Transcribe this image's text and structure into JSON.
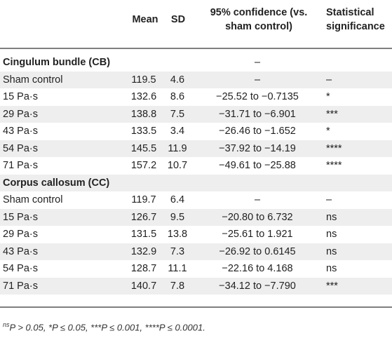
{
  "table": {
    "headers": [
      "",
      "Mean",
      "SD",
      "95% confidence (vs. sham control)",
      "Statistical significance"
    ],
    "header_lines": {
      "mean": "Mean",
      "sd": "SD",
      "ci_line1": "95% confidence (vs.",
      "ci_line2": "sham control)",
      "sig_line1": "Statistical",
      "sig_line2": "significance"
    },
    "rows": [
      {
        "type": "section",
        "label": "Cingulum bundle (CB)",
        "mean": "",
        "sd": "",
        "ci": "–",
        "sig": ""
      },
      {
        "type": "data",
        "label": "Sham control",
        "mean": "119.5",
        "sd": "4.6",
        "ci": "–",
        "sig": "–"
      },
      {
        "type": "data",
        "label": "15 Pa·s",
        "mean": "132.6",
        "sd": "8.6",
        "ci": "−25.52 to −0.7135",
        "sig": "*"
      },
      {
        "type": "data",
        "label": "29 Pa·s",
        "mean": "138.8",
        "sd": "7.5",
        "ci": "−31.71 to −6.901",
        "sig": "***"
      },
      {
        "type": "data",
        "label": "43 Pa·s",
        "mean": "133.5",
        "sd": "3.4",
        "ci": "−26.46 to −1.652",
        "sig": "*"
      },
      {
        "type": "data",
        "label": "54 Pa·s",
        "mean": "145.5",
        "sd": "11.9",
        "ci": "−37.92 to −14.19",
        "sig": "****"
      },
      {
        "type": "data",
        "label": "71 Pa·s",
        "mean": "157.2",
        "sd": "10.7",
        "ci": "−49.61 to −25.88",
        "sig": "****"
      },
      {
        "type": "section",
        "label": "Corpus callosum (CC)",
        "mean": "",
        "sd": "",
        "ci": "",
        "sig": ""
      },
      {
        "type": "data",
        "label": "Sham control",
        "mean": "119.7",
        "sd": "6.4",
        "ci": "–",
        "sig": "–"
      },
      {
        "type": "data",
        "label": "15 Pa·s",
        "mean": "126.7",
        "sd": "9.5",
        "ci": "−20.80 to 6.732",
        "sig": "ns"
      },
      {
        "type": "data",
        "label": "29 Pa·s",
        "mean": "131.5",
        "sd": "13.8",
        "ci": "−25.61 to 1.921",
        "sig": "ns"
      },
      {
        "type": "data",
        "label": "43 Pa·s",
        "mean": "132.9",
        "sd": "7.3",
        "ci": "−26.92 to 0.6145",
        "sig": "ns"
      },
      {
        "type": "data",
        "label": "54 Pa·s",
        "mean": "128.7",
        "sd": "11.1",
        "ci": "−22.16 to 4.168",
        "sig": "ns"
      },
      {
        "type": "data",
        "label": "71 Pa·s",
        "mean": "140.7",
        "sd": "7.8",
        "ci": "−34.12 to −7.790",
        "sig": "***"
      }
    ]
  },
  "footnote": {
    "ns_sup": "ns",
    "text": "P > 0.05, *P ≤ 0.05, ***P ≤ 0.001, ****P ≤ 0.0001."
  },
  "colors": {
    "rule": "#7f7f7f",
    "shade": "#eeeeee",
    "text": "#222222"
  }
}
